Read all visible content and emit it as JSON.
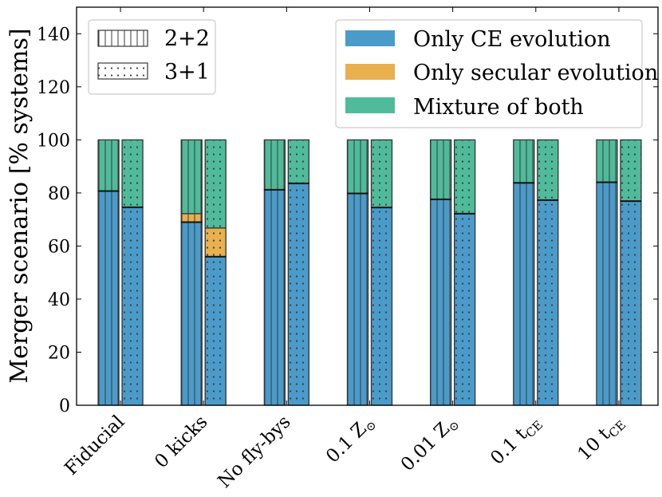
{
  "chart_data": {
    "type": "bar",
    "stacked": true,
    "grouped": true,
    "categories": [
      "Fiducial",
      "0 kicks",
      "No fly-bys",
      "0.1 Z_sun",
      "0.01 Z_sun",
      "0.1 t_CE",
      "10 t_CE"
    ],
    "category_labels": [
      {
        "main": "Fiducial",
        "sub": ""
      },
      {
        "main": "0 kicks",
        "sub": ""
      },
      {
        "main": "No fly-bys",
        "sub": ""
      },
      {
        "main": "0.1 Z",
        "sub": "⊙"
      },
      {
        "main": "0.01 Z",
        "sub": "⊙"
      },
      {
        "main": "0.1 t",
        "sub": "CE"
      },
      {
        "main": "10 t",
        "sub": "CE"
      }
    ],
    "groups": [
      {
        "name": "2+2",
        "hatch": "vertical",
        "only_ce": [
          80.7,
          69.0,
          81.2,
          79.8,
          77.6,
          83.8,
          84.0
        ],
        "only_secular": [
          0,
          3.2,
          0,
          0,
          0,
          0,
          0
        ],
        "mixture": [
          19.3,
          27.8,
          18.8,
          20.2,
          22.4,
          16.2,
          16.0
        ]
      },
      {
        "name": "3+1",
        "hatch": "dots",
        "only_ce": [
          74.6,
          56.0,
          83.6,
          74.5,
          72.2,
          77.3,
          76.9
        ],
        "only_secular": [
          0,
          10.8,
          0,
          0,
          0,
          0,
          0
        ],
        "mixture": [
          25.4,
          33.2,
          16.4,
          25.5,
          27.8,
          22.7,
          23.1
        ]
      }
    ],
    "series": [
      {
        "name": "Only CE evolution",
        "color": "#4a9bc9"
      },
      {
        "name": "Only secular evolution",
        "color": "#e8b04f"
      },
      {
        "name": "Mixture of both",
        "color": "#4fbb9b"
      }
    ],
    "title": "",
    "xlabel": "",
    "ylabel": "Merger scenario [% systems]",
    "ylim": [
      0,
      150
    ],
    "yticks": [
      0,
      20,
      40,
      60,
      80,
      100,
      120,
      140
    ],
    "legend_groups_position": "top-left",
    "legend_series_position": "top-right"
  }
}
